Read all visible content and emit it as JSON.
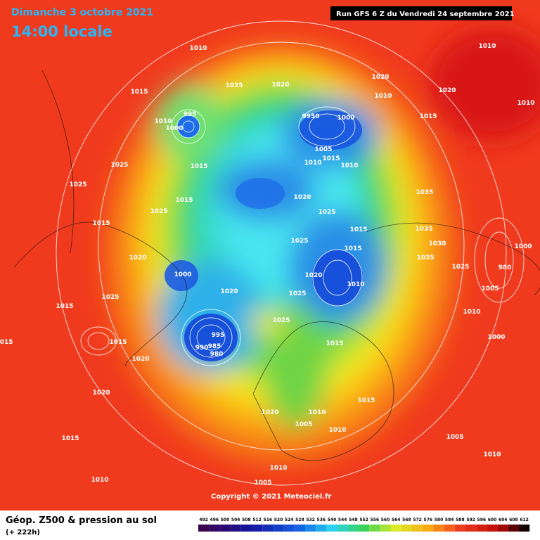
{
  "header": {
    "date": "Dimanche 3 octobre 2021",
    "time": "14:00 locale",
    "run": "Run GFS 6 Z du Vendredi 24 septembre 2021"
  },
  "copyright": "Copyright © 2021 Meteociel.fr",
  "footer": {
    "title": "Géop. Z500 & pression au sol",
    "lead": "(+ 222h)"
  },
  "colorbar": {
    "ticks": [
      492,
      496,
      500,
      504,
      508,
      512,
      516,
      520,
      524,
      528,
      532,
      536,
      540,
      544,
      548,
      552,
      556,
      560,
      564,
      568,
      572,
      576,
      580,
      584,
      588,
      592,
      596,
      600,
      604,
      608,
      612
    ]
  },
  "isobar_labels": [
    "1010",
    "1015",
    "1025",
    "1020",
    "995",
    "1010",
    "1000",
    "9950",
    "1000",
    "1005",
    "1010",
    "1015",
    "1010",
    "1020",
    "1010",
    "1020",
    "1015",
    "1010",
    "1010",
    "1025",
    "1015",
    "1025",
    "1015",
    "1025",
    "1015",
    "1020",
    "1025",
    "1015",
    "1035",
    "1035",
    "1030",
    "1035",
    "1025",
    "1015",
    "1020",
    "1000",
    "1020",
    "1010",
    "1025",
    "1020",
    "1025",
    "1015",
    "1025",
    "1025",
    "995",
    "990",
    "985",
    "980",
    "1015",
    "1020",
    "1015",
    "1020",
    "1020",
    "1015",
    "1010",
    "1005",
    "1010",
    "1015",
    "1005",
    "1010",
    "1010",
    "1005",
    "1000",
    "1010",
    "1005",
    "1000",
    "980",
    "1015",
    "1010"
  ]
}
